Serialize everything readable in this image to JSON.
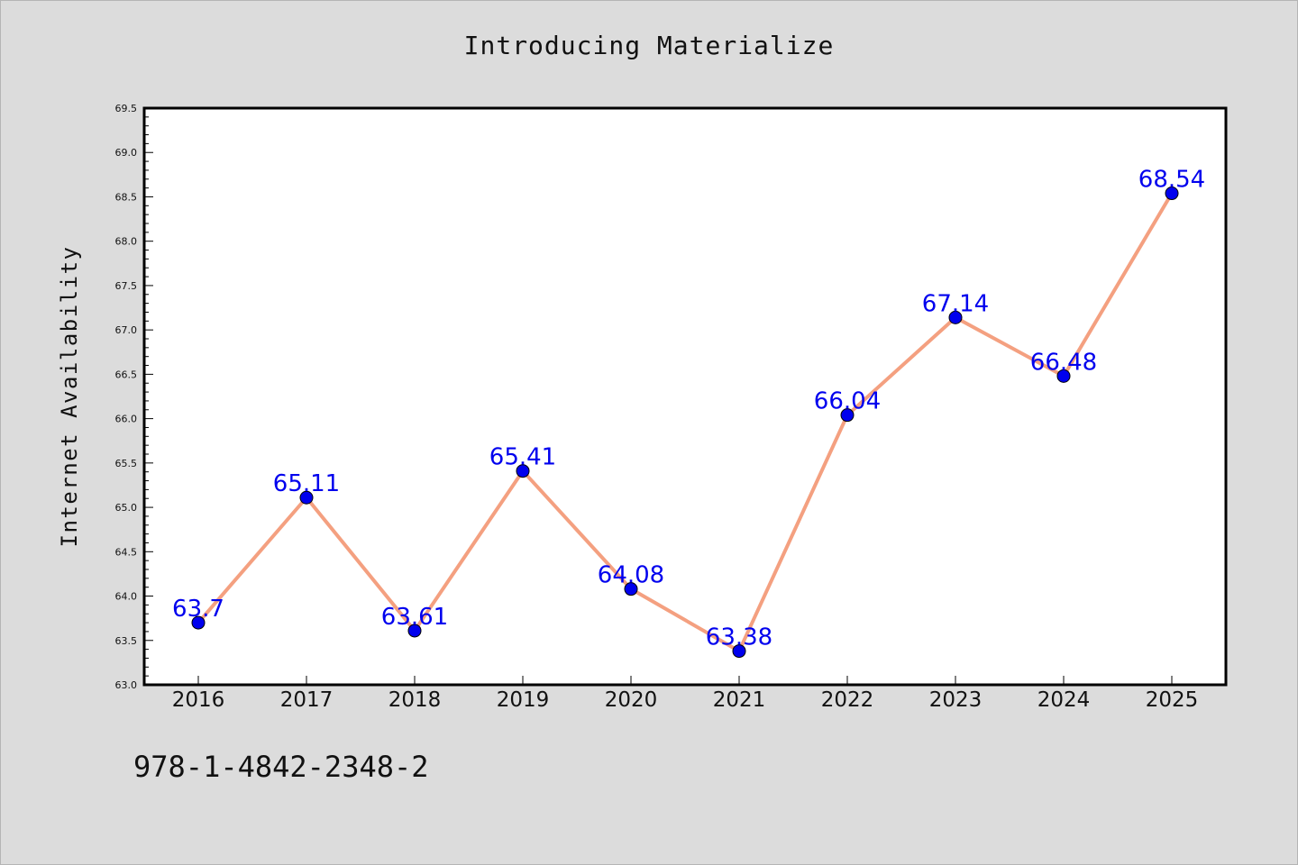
{
  "chart_data": {
    "type": "line",
    "title": "Introducing Materialize",
    "xlabel": "",
    "ylabel": "Internet Availability",
    "categories": [
      "2016",
      "2017",
      "2018",
      "2019",
      "2020",
      "2021",
      "2022",
      "2023",
      "2024",
      "2025"
    ],
    "values": [
      63.7,
      65.11,
      63.61,
      65.41,
      64.08,
      63.38,
      66.04,
      67.14,
      66.48,
      68.54
    ],
    "value_labels": [
      "63.7",
      "65.11",
      "63.61",
      "65.41",
      "64.08",
      "63.38",
      "66.04",
      "67.14",
      "66.48",
      "68.54"
    ],
    "ylim": [
      63.0,
      69.5
    ],
    "yticks": [
      "63.0",
      "63.5",
      "64.0",
      "64.5",
      "65.0",
      "65.5",
      "66.0",
      "66.5",
      "67.0",
      "67.5",
      "68.0",
      "68.5",
      "69.0",
      "69.5"
    ],
    "grid": false,
    "legend": "none",
    "line_color": "#f4a080",
    "marker_color": "#0000ee",
    "label_color": "#0000ee"
  },
  "footer": {
    "isbn": "978-1-4842-2348-2"
  }
}
